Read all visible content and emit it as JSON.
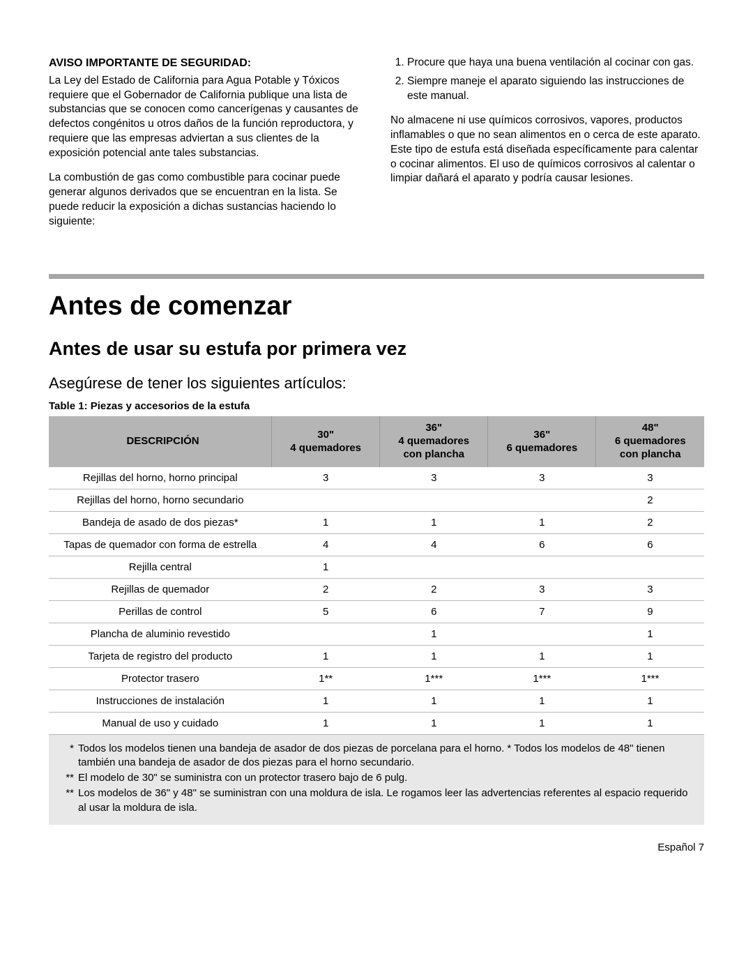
{
  "safety": {
    "heading": "Aviso Importante De Seguridad:",
    "p1": "La Ley del Estado de California para Agua Potable y Tóxicos requiere que el Gobernador de California publique una lista de substancias que se conocen como cancerígenas y causantes de defectos congénitos u otros daños de la función reproductora, y requiere que las empresas adviertan a sus clientes de la exposición potencial ante tales substancias.",
    "p2": "La combustión de gas como combustible para cocinar puede generar algunos derivados que se encuentran en la lista. Se puede reducir la exposición a dichas sustancias haciendo lo siguiente:",
    "li1": "Procure que haya una buena ventilación al cocinar con gas.",
    "li2": "Siempre maneje el aparato siguiendo las instrucciones de este manual.",
    "p3": "No almacene ni use químicos corrosivos, vapores, productos inflamables o que no sean alimentos en o cerca de este aparato. Este tipo de estufa está diseñada específicamente para calentar o cocinar alimentos. El uso de químicos corrosivos al calentar o limpiar dañará el aparato y podría causar lesiones."
  },
  "main": {
    "h1": "Antes de comenzar",
    "h2": "Antes de usar su estufa por primera vez",
    "lead": "Asegúrese de tener los siguientes artículos:",
    "tableCaption": "Table 1: Piezas y accesorios de la estufa"
  },
  "table": {
    "headers": {
      "c0": "DESCRIPCIÓN",
      "c1a": "30\"",
      "c1b": "4 quemadores",
      "c2a": "36\"",
      "c2b": "4 quemadores",
      "c2c": "con plancha",
      "c3a": "36\"",
      "c3b": "6 quemadores",
      "c4a": "48\"",
      "c4b": "6 quemadores",
      "c4c": "con plancha"
    },
    "rows": [
      {
        "d": "Rejillas del horno, horno principal",
        "v": [
          "3",
          "3",
          "3",
          "3"
        ]
      },
      {
        "d": "Rejillas del horno, horno secundario",
        "v": [
          "",
          "",
          "",
          "2"
        ]
      },
      {
        "d": "Bandeja de asado de dos piezas*",
        "v": [
          "1",
          "1",
          "1",
          "2"
        ]
      },
      {
        "d": "Tapas de quemador con forma de estrella",
        "v": [
          "4",
          "4",
          "6",
          "6"
        ]
      },
      {
        "d": "Rejilla central",
        "v": [
          "1",
          "",
          "",
          ""
        ]
      },
      {
        "d": "Rejillas de quemador",
        "v": [
          "2",
          "2",
          "3",
          "3"
        ]
      },
      {
        "d": "Perillas de control",
        "v": [
          "5",
          "6",
          "7",
          "9"
        ]
      },
      {
        "d": "Plancha de aluminio revestido",
        "v": [
          "",
          "1",
          "",
          "1"
        ]
      },
      {
        "d": "Tarjeta de registro del producto",
        "v": [
          "1",
          "1",
          "1",
          "1"
        ]
      },
      {
        "d": "Protector trasero",
        "v": [
          "1**",
          "1***",
          "1***",
          "1***"
        ]
      },
      {
        "d": "Instrucciones de instalación",
        "v": [
          "1",
          "1",
          "1",
          "1"
        ]
      },
      {
        "d": "Manual de uso y cuidado",
        "v": [
          "1",
          "1",
          "1",
          "1"
        ]
      }
    ],
    "footnotes": [
      {
        "mark": "*",
        "text": "Todos los modelos tienen una bandeja de asador de dos piezas de porcelana para el horno. * Todos los modelos de 48\" tienen también una bandeja de asador de dos piezas para el horno secundario."
      },
      {
        "mark": "**",
        "text": "El modelo de 30\" se suministra con un protector trasero bajo de 6 pulg."
      },
      {
        "mark": "**",
        "text": "Los modelos de 36\" y 48\" se suministran con una moldura de isla. Le rogamos leer las advertencias referentes al espacio requerido al usar la moldura de isla."
      }
    ]
  },
  "footer": {
    "pageLabel": "Español 7"
  }
}
